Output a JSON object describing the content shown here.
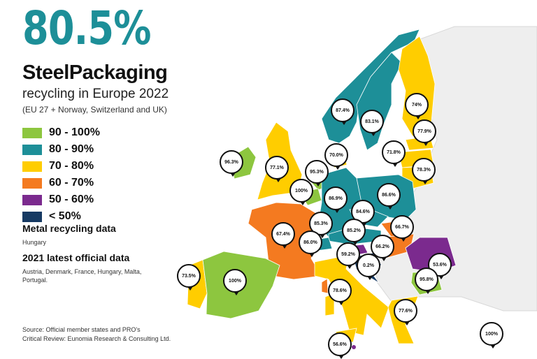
{
  "headline": {
    "value": "80.5%",
    "title": "SteelPackaging",
    "subtitle": "recycling in Europe 2022",
    "scope": "(EU 27 + Norway, Switzerland and UK)"
  },
  "legend": [
    {
      "label": "90 - 100%",
      "color": "#8dc63f"
    },
    {
      "label": "80 - 90%",
      "color": "#1d8f98"
    },
    {
      "label": "70 - 80%",
      "color": "#ffcd00"
    },
    {
      "label": "60 - 70%",
      "color": "#f47a20"
    },
    {
      "label": "50 - 60%",
      "color": "#7b2a8e"
    },
    {
      "label": "< 50%",
      "color": "#163a63"
    }
  ],
  "notes": {
    "metal_title": "Metal recycling data",
    "metal_text": "Hungary",
    "latest_title": "2021 latest official data",
    "latest_text": "Austria, Denmark, France, Hungary, Malta, Portugal.",
    "source": "Source: Official member states and PRO's",
    "review": "Critical Review: Eunomia Research & Consulting Ltd."
  },
  "map": {
    "pins": [
      {
        "value": "87.4%"
      },
      {
        "value": "83.1%"
      },
      {
        "value": "74%"
      },
      {
        "value": "77.9%"
      },
      {
        "value": "71.8%"
      },
      {
        "value": "78.3%"
      },
      {
        "value": "70.0%"
      },
      {
        "value": "96.3%"
      },
      {
        "value": "77.1%"
      },
      {
        "value": "95.3%"
      },
      {
        "value": "100%"
      },
      {
        "value": "86.9%"
      },
      {
        "value": "86.6%"
      },
      {
        "value": "84.6%"
      },
      {
        "value": "85.3%"
      },
      {
        "value": "85.2%"
      },
      {
        "value": "86.0%"
      },
      {
        "value": "66.7%"
      },
      {
        "value": "66.2%"
      },
      {
        "value": "59.2%"
      },
      {
        "value": "0.2%"
      },
      {
        "value": "67.4%"
      },
      {
        "value": "53.6%"
      },
      {
        "value": "95.8%"
      },
      {
        "value": "73.5%"
      },
      {
        "value": "100%"
      },
      {
        "value": "78.6%"
      },
      {
        "value": "77.6%"
      },
      {
        "value": "56.6%"
      },
      {
        "value": "100%"
      }
    ]
  }
}
